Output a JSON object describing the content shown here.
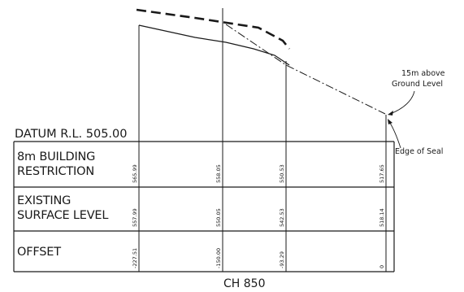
{
  "datum": {
    "label": "DATUM R.L. 505.00"
  },
  "rows": [
    {
      "line1": "8m BUILDING",
      "line2": "RESTRICTION",
      "values": [
        "565.99",
        "558.05",
        "550.53",
        "517.65"
      ]
    },
    {
      "line1": "EXISTING",
      "line2": "SURFACE LEVEL",
      "values": [
        "557.99",
        "550.05",
        "542.53",
        "518.14"
      ]
    },
    {
      "line1": "OFFSET",
      "line2": "",
      "values": [
        "-227.51",
        "-150.00",
        "-93.29",
        "0"
      ]
    }
  ],
  "annotations": {
    "above_ground_line1": "15m above",
    "above_ground_line2": "Ground Level",
    "edge_of_seal": "Edge of Seal"
  },
  "chainage": {
    "label": "CH 850"
  },
  "colors": {
    "ink": "#1a1a1a"
  }
}
